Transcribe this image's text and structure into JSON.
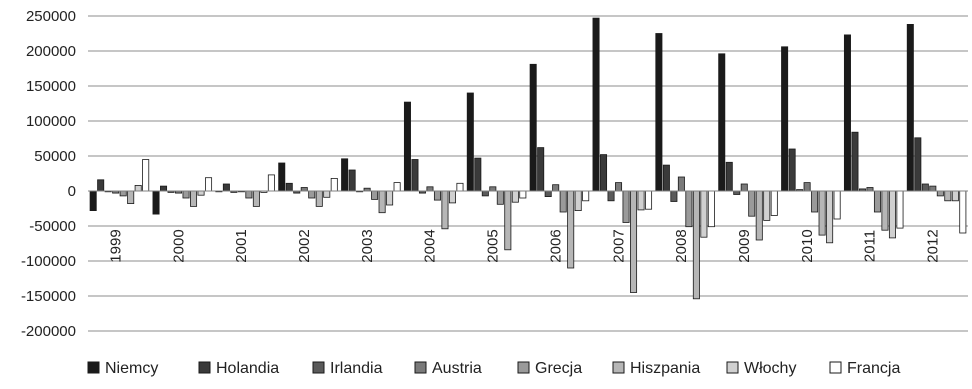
{
  "chart_data": {
    "type": "bar",
    "title": "",
    "xlabel": "",
    "ylabel": "",
    "ylim": [
      -200000,
      250000
    ],
    "yticks": [
      250000,
      200000,
      150000,
      100000,
      50000,
      0,
      -50000,
      -100000,
      -150000,
      -200000
    ],
    "grid": true,
    "legend_position": "bottom",
    "categories": [
      "1999",
      "2000",
      "2001",
      "2002",
      "2003",
      "2004",
      "2005",
      "2006",
      "2007",
      "2008",
      "2009",
      "2010",
      "2011",
      "2012"
    ],
    "series": [
      {
        "name": "Niemcy",
        "color": "#1a1a1a",
        "values": [
          -28000,
          -33000,
          0,
          40000,
          46000,
          127000,
          140000,
          181000,
          247000,
          225000,
          196000,
          206000,
          223000,
          238000
        ]
      },
      {
        "name": "Holandia",
        "color": "#3a3a3a",
        "values": [
          16000,
          7000,
          10000,
          11000,
          30000,
          45000,
          47000,
          62000,
          52000,
          37000,
          41000,
          60000,
          84000,
          76000
        ]
      },
      {
        "name": "Irlandia",
        "color": "#5a5a5a",
        "values": [
          0,
          -2000,
          -2000,
          -3000,
          0,
          -3000,
          -7000,
          -8000,
          -14000,
          -15000,
          -5000,
          2000,
          3000,
          10000
        ]
      },
      {
        "name": "Austria",
        "color": "#7a7a7a",
        "values": [
          -3000,
          -3000,
          -1000,
          5000,
          4000,
          6000,
          6000,
          9000,
          12000,
          20000,
          10000,
          12000,
          5000,
          7000
        ]
      },
      {
        "name": "Grecja",
        "color": "#9a9a9a",
        "values": [
          -7000,
          -10000,
          -10000,
          -10000,
          -12000,
          -13000,
          -19000,
          -30000,
          -45000,
          -51000,
          -36000,
          -30000,
          -30000,
          -7000
        ]
      },
      {
        "name": "Hiszpania",
        "color": "#b6b6b6",
        "values": [
          -18000,
          -22000,
          -22000,
          -22000,
          -31000,
          -54000,
          -84000,
          -110000,
          -145000,
          -154000,
          -70000,
          -63000,
          -56000,
          -14000
        ]
      },
      {
        "name": "Włochy",
        "color": "#d0d0d0",
        "values": [
          8000,
          -6000,
          -2000,
          -9000,
          -20000,
          -17000,
          -16000,
          -28000,
          -27000,
          -66000,
          -42000,
          -74000,
          -67000,
          -14000
        ]
      },
      {
        "name": "Francja",
        "color": "#ffffff",
        "values": [
          45000,
          19000,
          23000,
          18000,
          12000,
          11000,
          -10000,
          -14000,
          -26000,
          -51000,
          -35000,
          -40000,
          -53000,
          -60000
        ]
      }
    ]
  }
}
